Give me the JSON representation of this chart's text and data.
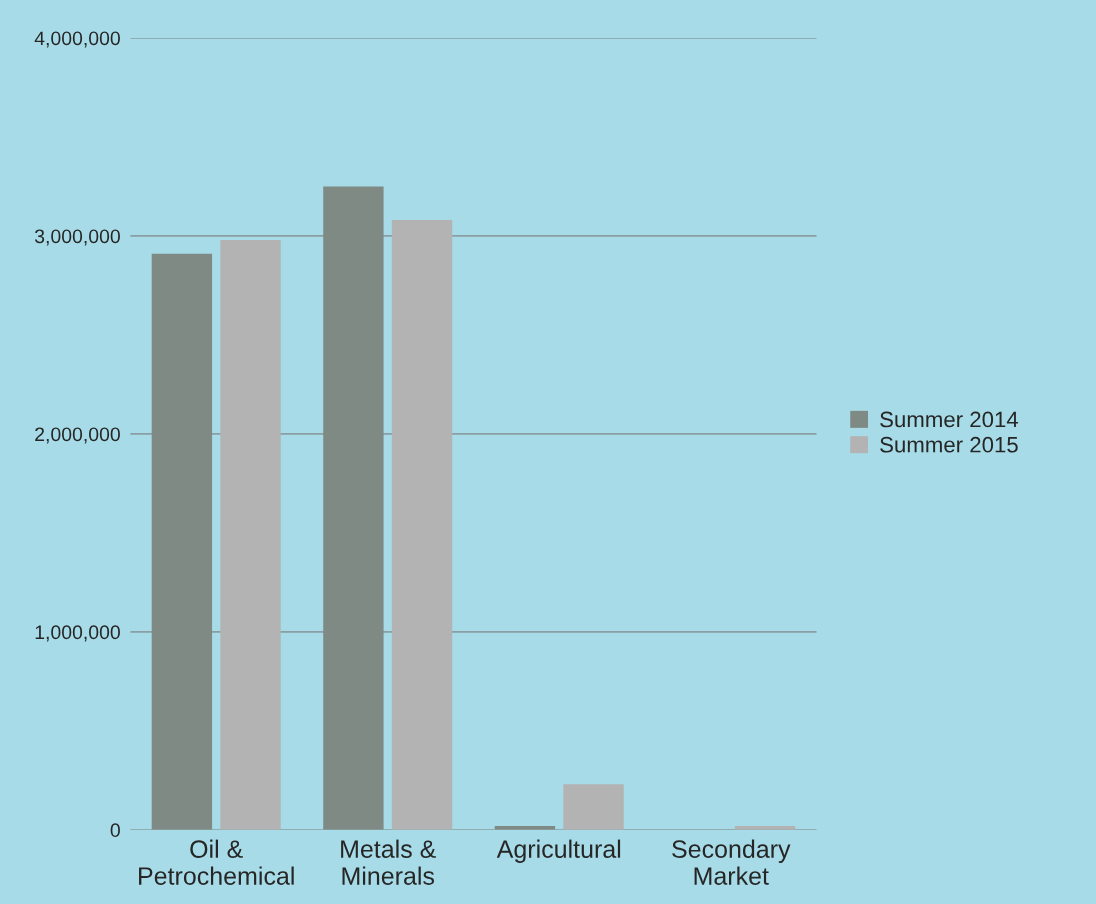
{
  "chart_data": {
    "type": "bar",
    "categories": [
      "Oil &\nPetrochemical",
      "Metals &\nMinerals",
      "Agricultural",
      "Secondary\nMarket"
    ],
    "series": [
      {
        "name": "Summer 2014",
        "color": "#7f8a85",
        "values": [
          2910000,
          3250000,
          20000,
          null
        ]
      },
      {
        "name": "Summer 2015",
        "color": "#b3b3b3",
        "values": [
          2980000,
          3080000,
          230000,
          20000
        ]
      }
    ],
    "ylim": [
      0,
      4000000
    ],
    "yticks": [
      {
        "value": 0,
        "label": "0"
      },
      {
        "value": 1000000,
        "label": "1,000,000"
      },
      {
        "value": 2000000,
        "label": "2,000,000"
      },
      {
        "value": 3000000,
        "label": "3,000,000"
      },
      {
        "value": 4000000,
        "label": "4,000,000"
      }
    ],
    "grid": "y",
    "legend": "right"
  }
}
